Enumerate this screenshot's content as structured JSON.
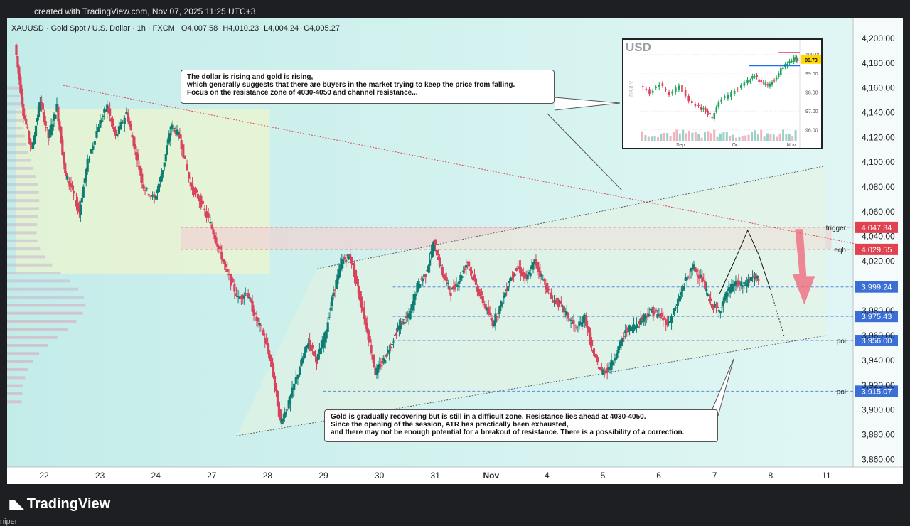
{
  "header": {
    "text": "created with TradingView.com, Nov 07, 2025 11:25 UTC+3"
  },
  "chart_data": {
    "type": "candlestick",
    "legend": {
      "symbol": "XAUUSD · Gold Spot / U.S. Dollar · 1h · FXCM",
      "open": "O4,007.58",
      "high": "H4,010.23",
      "low": "L4,004.24",
      "close": "C4,005.27"
    },
    "ylim": [
      3855,
      4212
    ],
    "y_ticks": [
      "4,200.00",
      "4,180.00",
      "4,160.00",
      "4,140.00",
      "4,120.00",
      "4,100.00",
      "4,080.00",
      "4,060.00",
      "4,040.00",
      "4,020.00",
      "3,980.00",
      "3,960.00",
      "3,940.00",
      "3,920.00",
      "3,900.00",
      "3,880.00",
      "3,860.00"
    ],
    "x_ticks": [
      "22",
      "23",
      "24",
      "27",
      "28",
      "29",
      "30",
      "31",
      "Nov",
      "4",
      "5",
      "6",
      "7",
      "8",
      "11"
    ],
    "close_path": [
      [
        0,
        4195
      ],
      [
        0.3,
        4140
      ],
      [
        0.6,
        4110
      ],
      [
        0.9,
        4150
      ],
      [
        1.2,
        4120
      ],
      [
        1.5,
        4145
      ],
      [
        1.8,
        4090
      ],
      [
        2.0,
        4080
      ],
      [
        2.3,
        4060
      ],
      [
        2.6,
        4100
      ],
      [
        3.0,
        4130
      ],
      [
        3.3,
        4145
      ],
      [
        3.6,
        4120
      ],
      [
        4.0,
        4140
      ],
      [
        4.3,
        4110
      ],
      [
        4.6,
        4080
      ],
      [
        5.0,
        4070
      ],
      [
        5.3,
        4095
      ],
      [
        5.6,
        4130
      ],
      [
        5.9,
        4120
      ],
      [
        6.3,
        4080
      ],
      [
        6.6,
        4070
      ],
      [
        7.0,
        4050
      ],
      [
        7.3,
        4030
      ],
      [
        7.6,
        4010
      ],
      [
        8.0,
        3990
      ],
      [
        8.3,
        3995
      ],
      [
        8.6,
        3975
      ],
      [
        8.9,
        3960
      ],
      [
        9.2,
        3935
      ],
      [
        9.5,
        3890
      ],
      [
        9.8,
        3905
      ],
      [
        10.2,
        3935
      ],
      [
        10.5,
        3955
      ],
      [
        10.8,
        3940
      ],
      [
        11.1,
        3960
      ],
      [
        11.4,
        3995
      ],
      [
        11.7,
        4020
      ],
      [
        12.0,
        4025
      ],
      [
        12.3,
        3995
      ],
      [
        12.6,
        3965
      ],
      [
        12.9,
        3930
      ],
      [
        13.2,
        3940
      ],
      [
        13.5,
        3955
      ],
      [
        13.8,
        3970
      ],
      [
        14.1,
        3975
      ],
      [
        14.4,
        4000
      ],
      [
        14.7,
        4010
      ],
      [
        15.0,
        4035
      ],
      [
        15.3,
        4010
      ],
      [
        15.6,
        3995
      ],
      [
        15.9,
        4005
      ],
      [
        16.2,
        4020
      ],
      [
        16.5,
        4000
      ],
      [
        16.8,
        3985
      ],
      [
        17.1,
        3970
      ],
      [
        17.4,
        3985
      ],
      [
        17.7,
        4005
      ],
      [
        18.0,
        4015
      ],
      [
        18.3,
        4005
      ],
      [
        18.6,
        4020
      ],
      [
        18.9,
        4005
      ],
      [
        19.2,
        3990
      ],
      [
        19.5,
        3985
      ],
      [
        19.8,
        3975
      ],
      [
        20.1,
        3965
      ],
      [
        20.4,
        3975
      ],
      [
        20.7,
        3945
      ],
      [
        21.0,
        3930
      ],
      [
        21.3,
        3935
      ],
      [
        21.6,
        3950
      ],
      [
        21.9,
        3965
      ],
      [
        22.2,
        3968
      ],
      [
        22.5,
        3975
      ],
      [
        22.8,
        3980
      ],
      [
        23.1,
        3975
      ],
      [
        23.4,
        3970
      ],
      [
        23.7,
        3985
      ],
      [
        24.0,
        4005
      ],
      [
        24.3,
        4015
      ],
      [
        24.6,
        4005
      ],
      [
        24.9,
        3985
      ],
      [
        25.2,
        3980
      ],
      [
        25.5,
        3995
      ],
      [
        25.8,
        4002
      ],
      [
        26.1,
        4000
      ],
      [
        26.4,
        4008
      ],
      [
        26.6,
        4005
      ]
    ],
    "levels": [
      {
        "label": "trigger",
        "value": 4047.34,
        "price_tag": "4,047.34",
        "color": "#e0434f"
      },
      {
        "label": "eqh",
        "value": 4029.55,
        "price_tag": "4,029.55",
        "color": "#e0434f"
      },
      {
        "label": "",
        "value": 3999.24,
        "price_tag": "3,999.24",
        "color": "#3b6fd6"
      },
      {
        "label": "",
        "value": 3975.43,
        "price_tag": "3,975.43",
        "color": "#3b6fd6"
      },
      {
        "label": "poi",
        "value": 3956.0,
        "price_tag": "3,956.00",
        "color": "#3b6fd6"
      },
      {
        "label": "poi",
        "value": 3915.07,
        "price_tag": "3,915.07",
        "color": "#3b6fd6"
      }
    ],
    "channel": {
      "upper": [
        [
          10.8,
          4014
        ],
        [
          29.0,
          4097
        ]
      ],
      "lower": [
        [
          7.9,
          3879
        ],
        [
          29.0,
          3960
        ]
      ]
    },
    "trendline": [
      [
        1.7,
        4162
      ],
      [
        30.5,
        4032
      ]
    ],
    "projection": [
      [
        25.2,
        3994
      ],
      [
        25.9,
        4029
      ],
      [
        26.2,
        4045
      ],
      [
        26.6,
        4025
      ],
      [
        27.0,
        3998
      ]
    ],
    "annotations": {
      "top": "The dollar is rising and gold is rising,\nwhich generally suggests that there are buyers in the market trying to keep the price from falling.\nFocus on the resistance zone of 4030-4050 and channel resistance...",
      "bottom": "Gold is gradually recovering but is still in a difficult zone. Resistance lies ahead at 4030-4050.\nSince the opening of the session, ATR has practically been exhausted,\nand there may not be enough potential for a breakout of resistance. There is a possibility of a correction."
    },
    "inset": {
      "title": "USD",
      "period": "DAILY",
      "y_ticks": [
        "100.00",
        "99.00",
        "98.00",
        "97.00",
        "96.00"
      ],
      "x_ticks": [
        "Sep",
        "Oct",
        "Nov"
      ],
      "last_tag": "99.73",
      "ylim": [
        95.5,
        100.4
      ],
      "path": [
        [
          0,
          98.3
        ],
        [
          3,
          98.0
        ],
        [
          6,
          98.4
        ],
        [
          9,
          97.9
        ],
        [
          12,
          98.3
        ],
        [
          15,
          97.6
        ],
        [
          18,
          97.2
        ],
        [
          20,
          97.0
        ],
        [
          22,
          96.6
        ],
        [
          24,
          97.5
        ],
        [
          27,
          97.8
        ],
        [
          30,
          98.2
        ],
        [
          33,
          98.6
        ],
        [
          35,
          98.9
        ],
        [
          37,
          98.5
        ],
        [
          39,
          98.4
        ],
        [
          41,
          98.6
        ],
        [
          43,
          99.2
        ],
        [
          45,
          99.5
        ],
        [
          47,
          99.8
        ],
        [
          48,
          99.73
        ]
      ],
      "marker_line": 99.4
    }
  },
  "branding": {
    "logo_text": "TradingView",
    "author": "niper"
  },
  "colors": {
    "up": "#0d7d72",
    "down": "#d9435b",
    "accent": "#2962ff"
  }
}
